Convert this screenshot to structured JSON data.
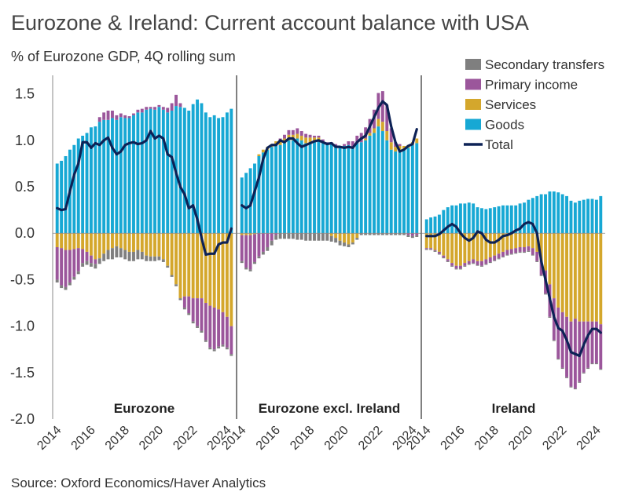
{
  "header": {
    "title": "Eurozone & Ireland: Current account balance with USA",
    "subtitle": "% of Eurozone GDP, 4Q rolling sum"
  },
  "footer": {
    "source": "Source: Oxford Economics/Haver Analytics"
  },
  "chart_data": {
    "type": "bar",
    "stacked": true,
    "ylim": [
      -2.0,
      1.7
    ],
    "yticks": [
      "1.5",
      "1.0",
      "0.5",
      "0.0",
      "-0.5",
      "-1.0",
      "-1.5",
      "-2.0"
    ],
    "ytick_values": [
      1.5,
      1.0,
      0.5,
      0.0,
      -0.5,
      -1.0,
      -1.5,
      -2.0
    ],
    "xtick_labels": [
      "2014",
      "2016",
      "2018",
      "2020",
      "2022",
      "2024"
    ],
    "legend": {
      "position": "top-right",
      "entries": [
        "Secondary transfers",
        "Primary income",
        "Services",
        "Goods",
        "Total"
      ]
    },
    "colors": {
      "secondary": "#7f7f7f",
      "primary": "#9b569b",
      "services": "#d4a72c",
      "goods": "#17a8d4",
      "total": "#0d2256",
      "zero_line": "#888888",
      "divider": "#000000"
    },
    "panels": [
      {
        "label": "Eurozone",
        "start_year": 2014,
        "goods": [
          0.75,
          0.78,
          0.83,
          0.9,
          0.95,
          1.02,
          1.05,
          1.08,
          1.14,
          1.15,
          1.2,
          1.22,
          1.22,
          1.24,
          1.22,
          1.25,
          1.24,
          1.24,
          1.27,
          1.3,
          1.3,
          1.33,
          1.34,
          1.33,
          1.36,
          1.33,
          1.3,
          1.32,
          1.37,
          1.36,
          1.35,
          1.32,
          1.39,
          1.44,
          1.4,
          1.3,
          1.25,
          1.27,
          1.24,
          1.25,
          1.3,
          1.34
        ],
        "primary": [
          -0.35,
          -0.4,
          -0.4,
          -0.35,
          -0.3,
          -0.25,
          -0.15,
          -0.1,
          -0.08,
          -0.05,
          0.05,
          0.08,
          0.1,
          0.08,
          0.05,
          0.04,
          0.03,
          0.02,
          0.02,
          0.03,
          0.04,
          0.03,
          0.02,
          0.03,
          0.02,
          0.03,
          0.05,
          0.08,
          0.12,
          0.04,
          -0.12,
          -0.18,
          -0.25,
          -0.3,
          -0.35,
          -0.4,
          -0.45,
          -0.45,
          -0.4,
          -0.35,
          -0.33,
          -0.3
        ],
        "services": [
          -0.15,
          -0.16,
          -0.18,
          -0.18,
          -0.17,
          -0.16,
          -0.17,
          -0.2,
          -0.24,
          -0.28,
          -0.27,
          -0.22,
          -0.18,
          -0.16,
          -0.14,
          -0.16,
          -0.18,
          -0.2,
          -0.2,
          -0.18,
          -0.2,
          -0.24,
          -0.25,
          -0.25,
          -0.25,
          -0.28,
          -0.35,
          -0.45,
          -0.55,
          -0.7,
          -0.68,
          -0.68,
          -0.7,
          -0.7,
          -0.7,
          -0.75,
          -0.78,
          -0.8,
          -0.82,
          -0.85,
          -0.9,
          -1.0
        ],
        "secondary": [
          -0.03,
          -0.03,
          -0.03,
          -0.03,
          -0.03,
          -0.03,
          -0.04,
          -0.04,
          -0.04,
          -0.05,
          -0.06,
          -0.08,
          -0.1,
          -0.12,
          -0.12,
          -0.1,
          -0.1,
          -0.1,
          -0.1,
          -0.1,
          -0.08,
          -0.06,
          -0.05,
          -0.05,
          -0.04,
          -0.03,
          -0.02,
          -0.02,
          -0.02,
          -0.02,
          -0.02,
          -0.02,
          -0.02,
          -0.02,
          -0.02,
          -0.02,
          -0.02,
          -0.02,
          -0.02,
          -0.02,
          -0.02,
          -0.02
        ],
        "total": [
          0.27,
          0.25,
          0.26,
          0.45,
          0.63,
          0.75,
          0.98,
          0.98,
          0.92,
          0.97,
          0.95,
          1.0,
          1.03,
          0.92,
          0.85,
          0.88,
          0.95,
          0.97,
          0.98,
          0.96,
          0.97,
          1.0,
          1.1,
          1.02,
          1.05,
          1.02,
          0.85,
          0.82,
          0.65,
          0.5,
          0.42,
          0.27,
          0.3,
          0.15,
          -0.05,
          -0.23,
          -0.22,
          -0.22,
          -0.12,
          -0.1,
          -0.1,
          0.05
        ]
      },
      {
        "label": "Eurozone excl. Ireland",
        "start_year": 2014,
        "goods": [
          0.6,
          0.65,
          0.7,
          0.75,
          0.83,
          0.87,
          0.9,
          0.93,
          0.95,
          0.95,
          0.97,
          1.0,
          1.0,
          1.02,
          1.0,
          0.97,
          0.97,
          0.99,
          1.0,
          0.97,
          0.95,
          0.96,
          0.94,
          0.92,
          0.94,
          0.95,
          0.93,
          0.97,
          0.98,
          1.0,
          1.05,
          1.08,
          1.15,
          1.1,
          1.0,
          0.9,
          0.88,
          0.9,
          0.9,
          0.92,
          0.95,
          0.97
        ],
        "primary": [
          -0.28,
          -0.35,
          -0.37,
          -0.3,
          -0.25,
          -0.2,
          -0.15,
          -0.08,
          -0.02,
          0.02,
          0.04,
          0.05,
          0.05,
          0.06,
          0.05,
          0.04,
          0.03,
          0.02,
          0.02,
          0.02,
          0.03,
          0.02,
          0.02,
          0.01,
          0.02,
          0.04,
          0.06,
          0.08,
          0.1,
          0.12,
          0.15,
          0.2,
          0.28,
          0.33,
          0.28,
          0.15,
          0.05,
          0.02,
          0.0,
          -0.02,
          -0.03,
          -0.02
        ],
        "services": [
          -0.02,
          -0.02,
          -0.02,
          -0.01,
          0.02,
          0.03,
          0.03,
          0.03,
          0.04,
          0.05,
          0.05,
          0.06,
          0.06,
          0.05,
          0.05,
          0.06,
          0.06,
          0.04,
          0.03,
          0.02,
          0.0,
          -0.03,
          -0.05,
          -0.08,
          -0.1,
          -0.12,
          -0.1,
          -0.05,
          0.0,
          0.02,
          0.03,
          0.05,
          0.08,
          0.1,
          0.1,
          0.08,
          0.05,
          0.04,
          0.04,
          0.03,
          0.03,
          0.05
        ],
        "secondary": [
          -0.02,
          -0.02,
          -0.02,
          -0.02,
          -0.02,
          -0.03,
          -0.04,
          -0.05,
          -0.05,
          -0.06,
          -0.06,
          -0.06,
          -0.06,
          -0.07,
          -0.07,
          -0.08,
          -0.08,
          -0.08,
          -0.08,
          -0.08,
          -0.08,
          -0.06,
          -0.05,
          -0.05,
          -0.04,
          -0.03,
          -0.02,
          -0.02,
          -0.02,
          -0.02,
          -0.02,
          -0.02,
          -0.02,
          -0.02,
          -0.02,
          -0.02,
          -0.02,
          -0.02,
          -0.02,
          -0.02,
          -0.02,
          -0.02
        ],
        "total": [
          0.3,
          0.27,
          0.3,
          0.45,
          0.6,
          0.8,
          0.92,
          0.95,
          0.95,
          1.0,
          0.98,
          1.02,
          1.02,
          0.97,
          0.93,
          0.95,
          0.97,
          0.99,
          1.0,
          0.98,
          0.96,
          0.97,
          0.93,
          0.93,
          0.92,
          0.93,
          0.92,
          0.98,
          1.02,
          1.05,
          1.15,
          1.25,
          1.35,
          1.42,
          1.38,
          1.15,
          0.98,
          0.88,
          0.9,
          0.94,
          0.96,
          1.12
        ]
      },
      {
        "label": "Ireland",
        "start_year": 2014,
        "goods": [
          0.15,
          0.17,
          0.18,
          0.2,
          0.25,
          0.28,
          0.3,
          0.3,
          0.32,
          0.32,
          0.33,
          0.32,
          0.28,
          0.27,
          0.26,
          0.27,
          0.28,
          0.29,
          0.3,
          0.3,
          0.3,
          0.3,
          0.32,
          0.33,
          0.36,
          0.38,
          0.4,
          0.42,
          0.42,
          0.45,
          0.45,
          0.44,
          0.42,
          0.4,
          0.35,
          0.33,
          0.35,
          0.36,
          0.37,
          0.37,
          0.36,
          0.4
        ],
        "primary": [
          -0.01,
          -0.01,
          -0.01,
          -0.02,
          -0.02,
          -0.02,
          -0.03,
          -0.03,
          -0.03,
          -0.03,
          -0.03,
          -0.04,
          -0.04,
          -0.05,
          -0.05,
          -0.05,
          -0.05,
          -0.05,
          -0.05,
          -0.05,
          -0.05,
          -0.05,
          -0.05,
          -0.05,
          -0.05,
          -0.07,
          -0.1,
          -0.15,
          -0.25,
          -0.35,
          -0.45,
          -0.55,
          -0.6,
          -0.65,
          -0.7,
          -0.75,
          -0.65,
          -0.55,
          -0.5,
          -0.45,
          -0.45,
          -0.48
        ],
        "services": [
          -0.16,
          -0.16,
          -0.18,
          -0.2,
          -0.24,
          -0.28,
          -0.32,
          -0.35,
          -0.35,
          -0.32,
          -0.3,
          -0.28,
          -0.3,
          -0.3,
          -0.28,
          -0.26,
          -0.24,
          -0.22,
          -0.2,
          -0.18,
          -0.17,
          -0.16,
          -0.15,
          -0.15,
          -0.14,
          -0.16,
          -0.2,
          -0.3,
          -0.4,
          -0.55,
          -0.7,
          -0.8,
          -0.85,
          -0.9,
          -0.95,
          -0.92,
          -0.95,
          -0.95,
          -0.95,
          -0.95,
          -0.95,
          -0.98
        ],
        "secondary": [
          -0.01,
          -0.01,
          -0.01,
          -0.01,
          -0.01,
          -0.01,
          -0.01,
          -0.01,
          -0.01,
          -0.01,
          -0.01,
          -0.01,
          -0.01,
          -0.01,
          -0.01,
          -0.01,
          -0.01,
          -0.01,
          -0.01,
          -0.01,
          -0.01,
          -0.01,
          -0.01,
          -0.01,
          -0.01,
          -0.01,
          -0.01,
          -0.01,
          -0.01,
          -0.01,
          -0.01,
          -0.01,
          -0.01,
          -0.01,
          -0.01,
          -0.01,
          -0.01,
          -0.01,
          -0.01,
          -0.01,
          -0.01,
          -0.01
        ],
        "total": [
          -0.03,
          -0.03,
          -0.03,
          -0.01,
          0.03,
          0.07,
          0.1,
          0.07,
          0.0,
          -0.05,
          -0.08,
          -0.05,
          0.02,
          0.0,
          -0.07,
          -0.1,
          -0.1,
          -0.07,
          -0.03,
          -0.02,
          0.0,
          0.03,
          0.05,
          0.1,
          0.12,
          0.1,
          0.0,
          -0.3,
          -0.5,
          -0.7,
          -0.9,
          -1.02,
          -1.05,
          -1.15,
          -1.28,
          -1.3,
          -1.32,
          -1.2,
          -1.1,
          -1.03,
          -1.03,
          -1.07
        ]
      }
    ]
  }
}
